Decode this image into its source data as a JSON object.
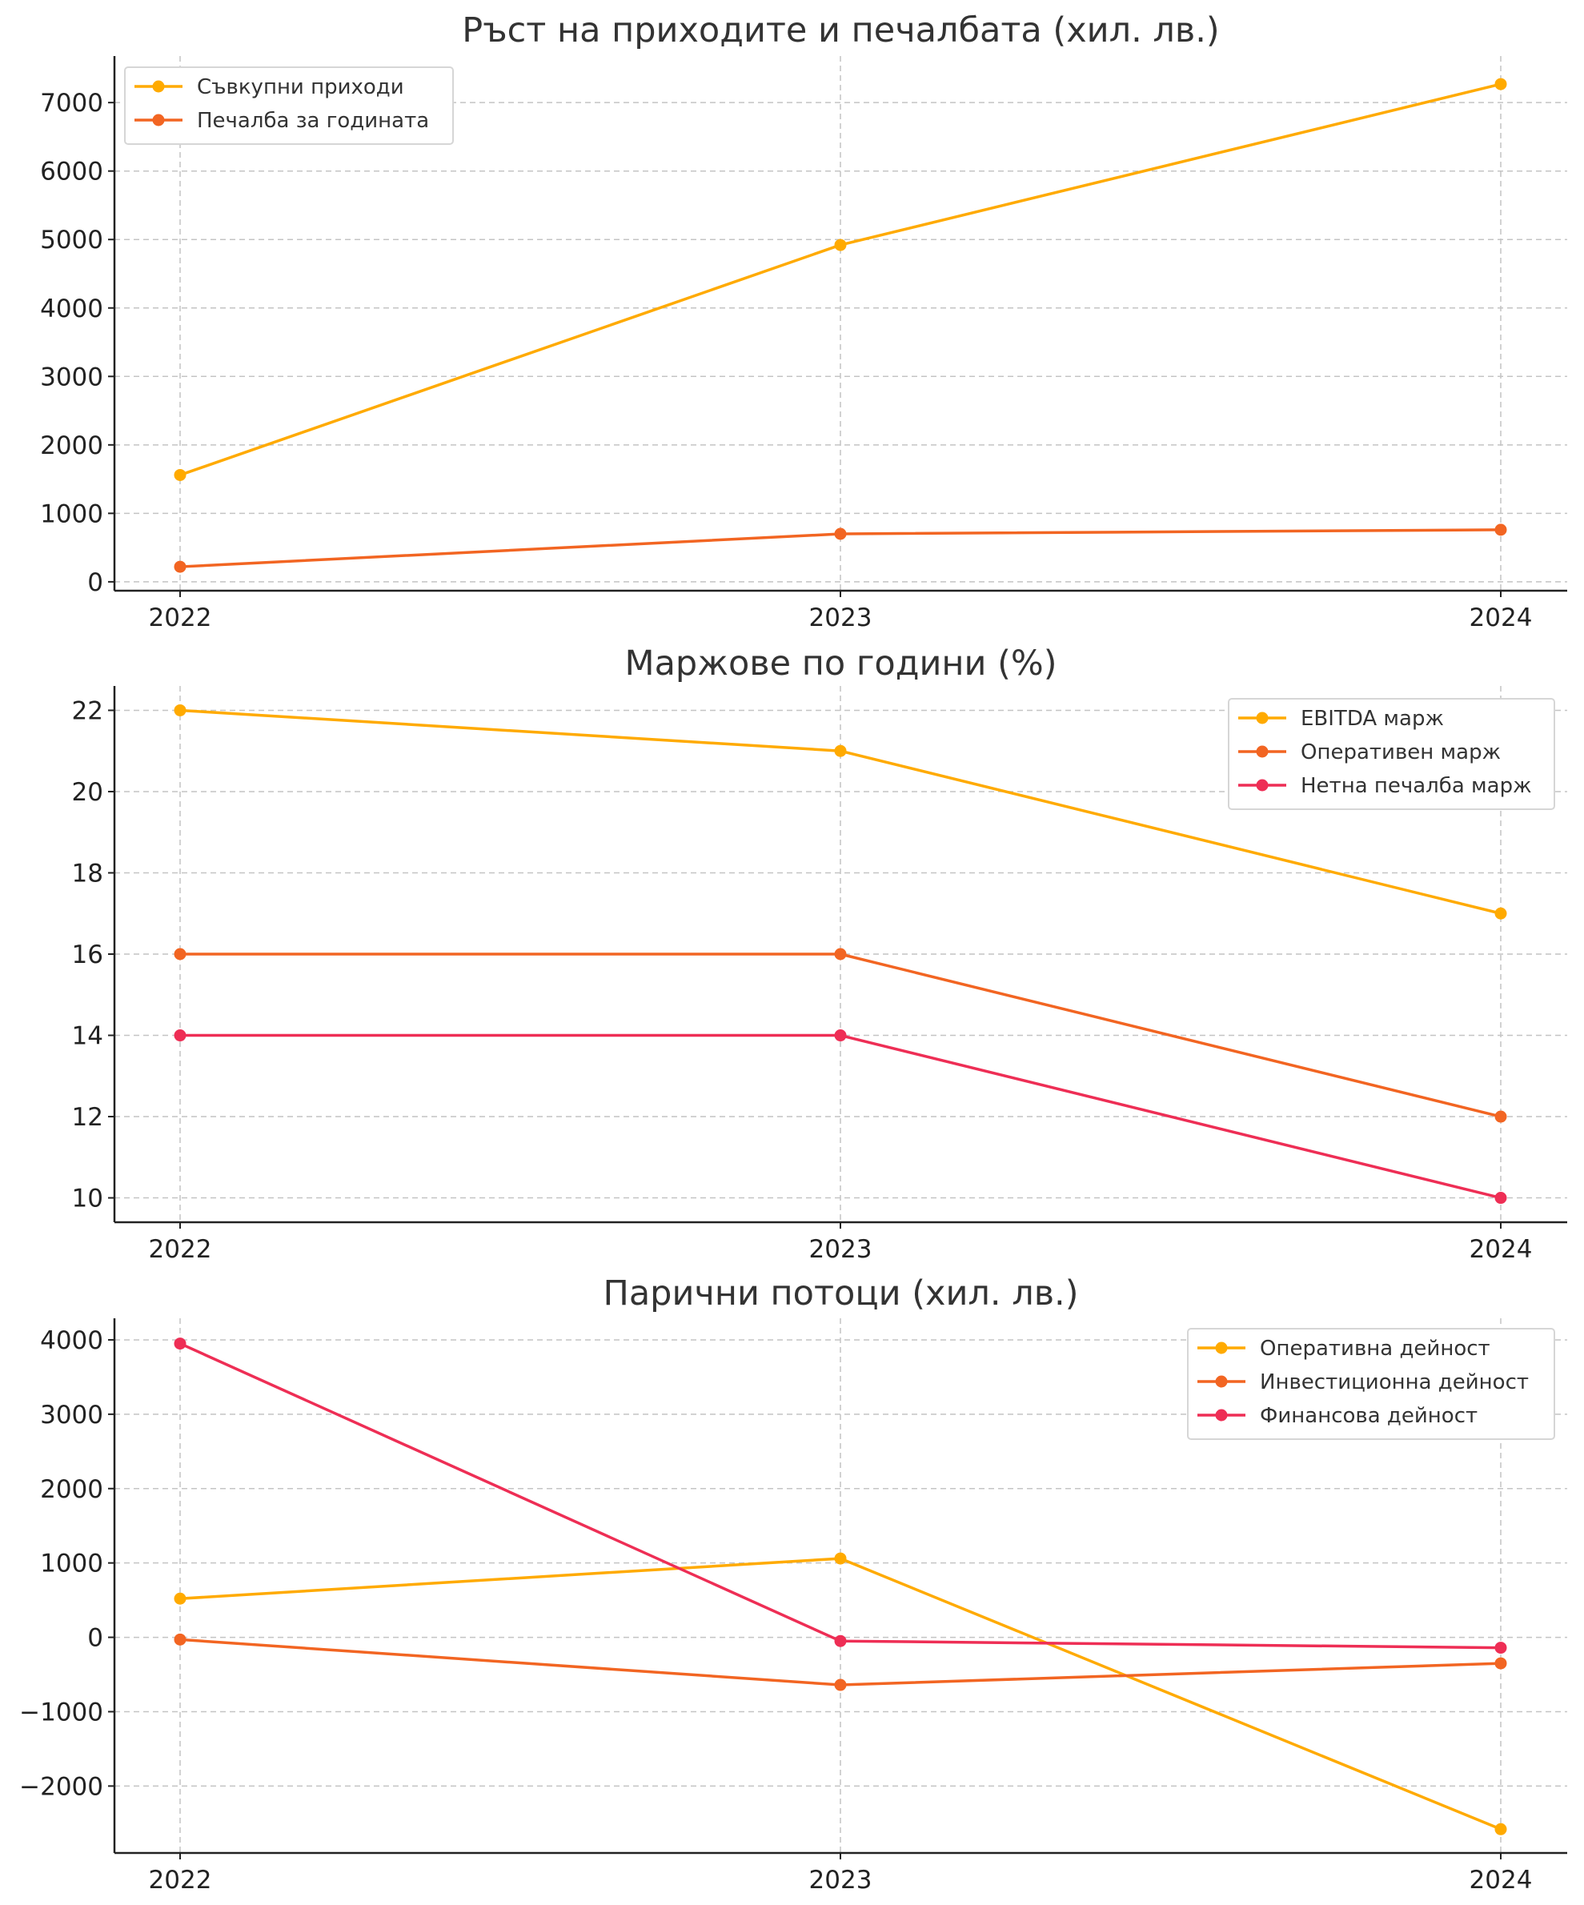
{
  "chart_data": [
    {
      "type": "line",
      "title": "Ръст на приходите и печалбата (хил. лв.)",
      "xlabel": "",
      "ylabel": "",
      "categories": [
        "2022",
        "2023",
        "2024"
      ],
      "ylim": [
        -130,
        7680
      ],
      "yticks": [
        0,
        1000,
        2000,
        3000,
        4000,
        5000,
        6000,
        7000
      ],
      "grid": true,
      "legend_position": "top-left",
      "series": [
        {
          "name": "Съвкупни приходи",
          "color": "#FFAA00",
          "values": [
            1560,
            4920,
            7270
          ]
        },
        {
          "name": "Печалба за годината",
          "color": "#F26522",
          "values": [
            220,
            700,
            760
          ]
        }
      ]
    },
    {
      "type": "line",
      "title": "Маржове по години (%)",
      "xlabel": "",
      "ylabel": "",
      "categories": [
        "2022",
        "2023",
        "2024"
      ],
      "ylim": [
        9.4,
        22.6
      ],
      "yticks": [
        10,
        12,
        14,
        16,
        18,
        20,
        22
      ],
      "grid": true,
      "legend_position": "top-right",
      "series": [
        {
          "name": "EBITDA марж",
          "color": "#FFAA00",
          "values": [
            22,
            21,
            17
          ]
        },
        {
          "name": "Оперативен марж",
          "color": "#F26522",
          "values": [
            16,
            16,
            12
          ]
        },
        {
          "name": "Нетна печалба марж",
          "color": "#EE2E55",
          "values": [
            14,
            14,
            10
          ]
        }
      ]
    },
    {
      "type": "line",
      "title": "Парични потоци (хил. лв.)",
      "xlabel": "",
      "ylabel": "",
      "categories": [
        "2022",
        "2023",
        "2024"
      ],
      "ylim": [
        -2900,
        4290
      ],
      "yticks": [
        -2000,
        -1000,
        0,
        1000,
        2000,
        3000,
        4000
      ],
      "ytick_labels": [
        "−2000",
        "−1000",
        "0",
        "1000",
        "2000",
        "3000",
        "4000"
      ],
      "grid": true,
      "legend_position": "top-right",
      "series": [
        {
          "name": "Оперативна дейност",
          "color": "#FFAA00",
          "values": [
            520,
            1060,
            -2580
          ]
        },
        {
          "name": "Инвестиционна дейност",
          "color": "#F26522",
          "values": [
            -30,
            -640,
            -350
          ]
        },
        {
          "name": "Финансова дейност",
          "color": "#EE2E55",
          "values": [
            3950,
            -50,
            -140
          ]
        }
      ]
    }
  ]
}
